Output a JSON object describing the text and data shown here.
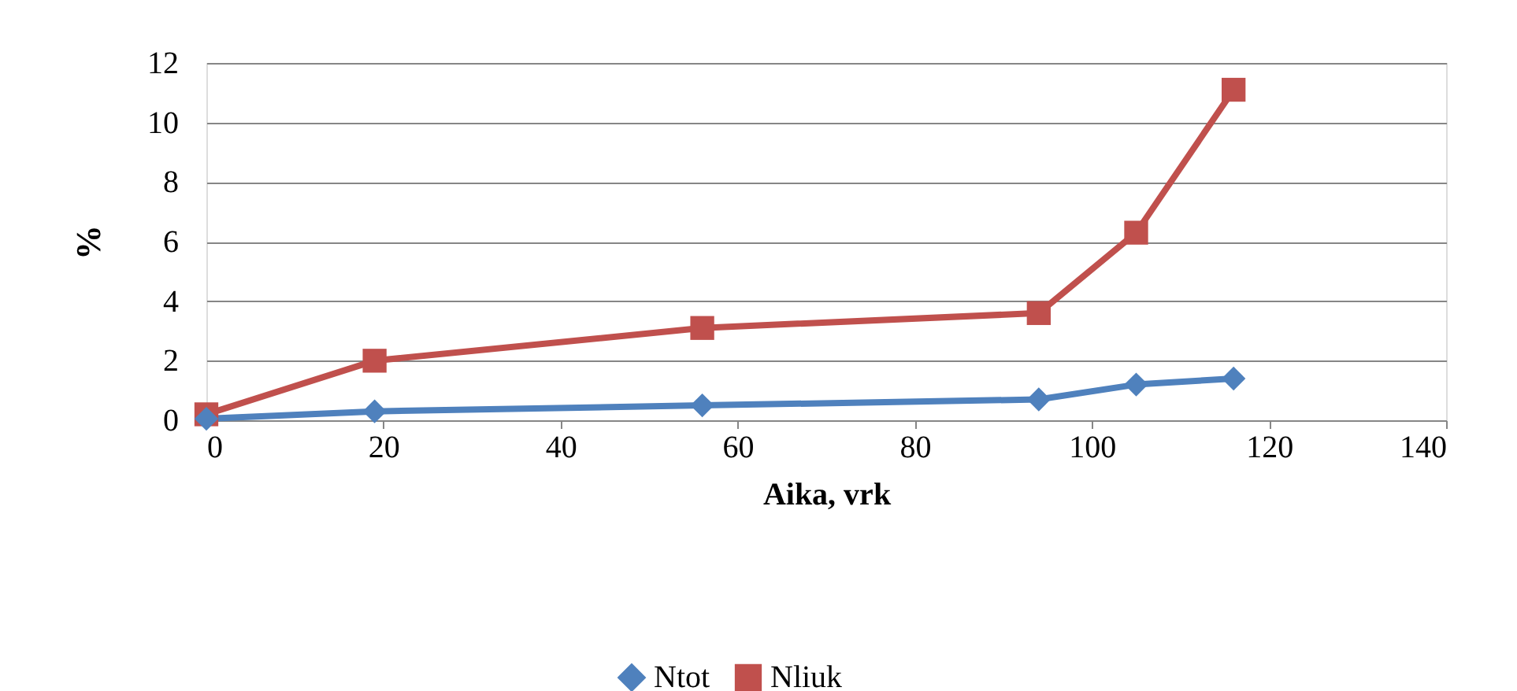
{
  "chart_data": {
    "type": "line",
    "xlabel": "Aika, vrk",
    "ylabel": "%",
    "xlim": [
      0,
      140
    ],
    "xticks": [
      0,
      20,
      40,
      60,
      80,
      100,
      120,
      140
    ],
    "ylim": [
      0,
      12
    ],
    "yticks": [
      0,
      2,
      4,
      6,
      8,
      10,
      12
    ],
    "grid": "y",
    "legend": "bottom",
    "line_style": "solid",
    "series": [
      {
        "name": "Ntot",
        "color": "#4f81bd",
        "marker": "diamond",
        "x": [
          0,
          19,
          56,
          94,
          105,
          116
        ],
        "values": [
          0.05,
          0.3,
          0.5,
          0.7,
          1.2,
          1.4
        ]
      },
      {
        "name": "Nliuk",
        "color": "#c0504d",
        "marker": "square",
        "x": [
          0,
          19,
          56,
          94,
          105,
          116
        ],
        "values": [
          0.2,
          2.0,
          3.1,
          3.6,
          6.3,
          11.1
        ]
      }
    ]
  }
}
